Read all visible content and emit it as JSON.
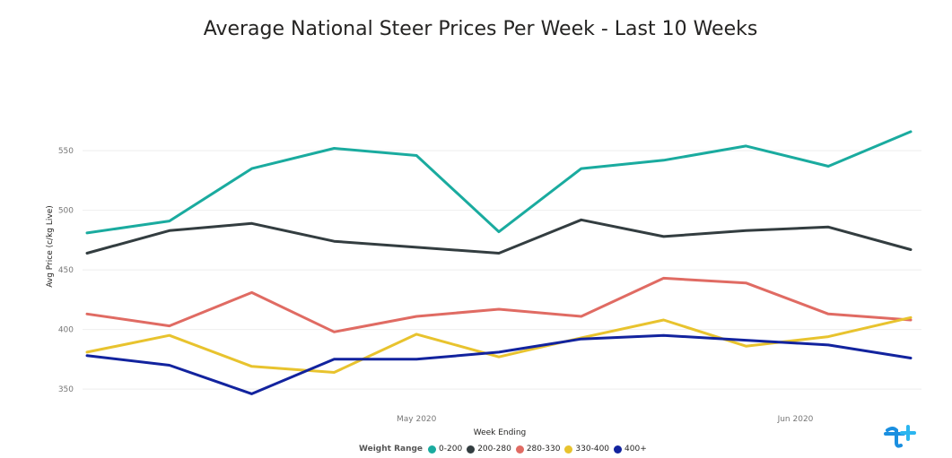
{
  "chart_data": {
    "type": "line",
    "title": "Average National Steer Prices Per Week - Last 10 Weeks",
    "xlabel": "Week Ending",
    "ylabel": "Avg Price (c/kg Live)",
    "x_tick_labels": [
      "May 2020",
      "Jun 2020"
    ],
    "x_tick_positions": [
      4.0,
      8.6
    ],
    "ylim": [
      332,
      590
    ],
    "y_ticks": [
      350,
      400,
      450,
      500,
      550
    ],
    "grid": true,
    "legend_title": "Weight Range",
    "legend_position": "bottom",
    "series": [
      {
        "name": "0-200",
        "color": "#1AAB9F",
        "values": [
          481,
          491,
          535,
          552,
          546,
          482,
          535,
          542,
          554,
          537,
          566
        ]
      },
      {
        "name": "200-280",
        "color": "#333D40",
        "values": [
          464,
          483,
          489,
          474,
          469,
          464,
          492,
          478,
          483,
          486,
          467
        ]
      },
      {
        "name": "280-330",
        "color": "#E06B63",
        "values": [
          413,
          403,
          431,
          398,
          411,
          417,
          411,
          443,
          439,
          413,
          408
        ]
      },
      {
        "name": "330-400",
        "color": "#E8C32E",
        "values": [
          381,
          395,
          369,
          364,
          396,
          377,
          393,
          408,
          386,
          394,
          410
        ]
      },
      {
        "name": "400+",
        "color": "#12239E",
        "values": [
          378,
          370,
          346,
          375,
          375,
          381,
          392,
          395,
          391,
          387,
          376
        ]
      }
    ]
  },
  "logo_icon": "tplus-logo-icon"
}
